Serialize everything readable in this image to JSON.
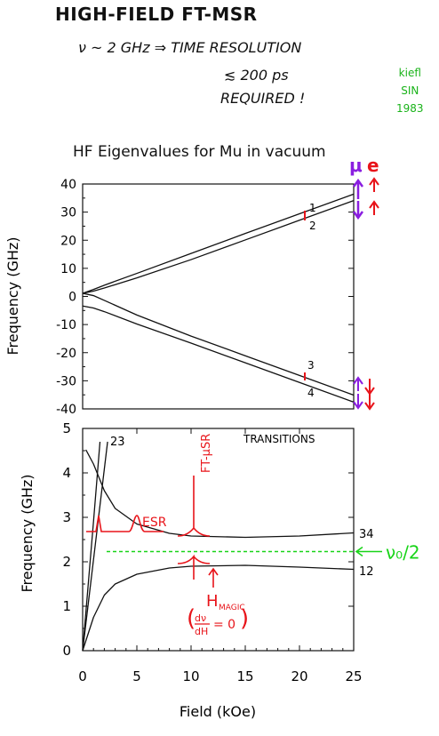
{
  "header": {
    "title": "HIGH-FIELD   FT-MSR",
    "line1": "ν ~ 2 GHz  ⇒ TIME RESOLUTION",
    "line2": "≲ 200 ps",
    "line3": "REQUIRED !",
    "credit": [
      "kiefl",
      "SIN",
      "1983"
    ]
  },
  "colors": {
    "red": "#e8141a",
    "purple": "#8a1ee0",
    "green": "#19d419",
    "ink": "#111111"
  },
  "chart_data": [
    {
      "type": "line",
      "title": "HF Eigenvalues for Mu in vacuum",
      "xlabel": "",
      "ylabel": "Frequency (GHz)",
      "xlim": [
        0,
        25
      ],
      "ylim": [
        -40,
        40
      ],
      "yticks": [
        "40",
        "30",
        "20",
        "10",
        "0",
        "-10",
        "-20",
        "-30",
        "-40"
      ],
      "grid": false,
      "series": [
        {
          "name": "1",
          "x": [
            0,
            1,
            2,
            5,
            10,
            15,
            20,
            25
          ],
          "y": [
            1.1,
            2.5,
            4.0,
            8.2,
            15.3,
            22.4,
            29.4,
            36.4
          ]
        },
        {
          "name": "2",
          "x": [
            0,
            1,
            2,
            5,
            10,
            15,
            20,
            25
          ],
          "y": [
            1.1,
            1.9,
            3.0,
            6.6,
            13.1,
            20.1,
            27.1,
            34.1
          ]
        },
        {
          "name": "3",
          "x": [
            0,
            1,
            2,
            5,
            10,
            15,
            20,
            25
          ],
          "y": [
            1.1,
            0.3,
            -1.4,
            -6.6,
            -14.1,
            -21.1,
            -28.1,
            -35.1
          ]
        },
        {
          "name": "4",
          "x": [
            0,
            1,
            2,
            5,
            10,
            15,
            20,
            25
          ],
          "y": [
            -3.4,
            -4.1,
            -5.4,
            -9.8,
            -16.6,
            -23.6,
            -30.6,
            -37.6
          ]
        }
      ],
      "spin_labels": {
        "mu": "μ",
        "e": "e"
      }
    },
    {
      "type": "line",
      "title": "",
      "panel_label": "TRANSITIONS",
      "xlabel": "Field (kOe)",
      "ylabel": "Frequency (GHz)",
      "xlim": [
        0,
        25
      ],
      "ylim": [
        0,
        5
      ],
      "xticks": [
        "0",
        "5",
        "10",
        "15",
        "20",
        "25"
      ],
      "yticks": [
        "0",
        "1",
        "2",
        "3",
        "4",
        "5"
      ],
      "grid": false,
      "series": [
        {
          "name": "34",
          "x": [
            0.3,
            1,
            2,
            3,
            5,
            8,
            10,
            15,
            20,
            25
          ],
          "y": [
            4.52,
            4.2,
            3.6,
            3.2,
            2.85,
            2.64,
            2.58,
            2.55,
            2.58,
            2.65
          ]
        },
        {
          "name": "12",
          "x": [
            0,
            1,
            2,
            3,
            5,
            8,
            10,
            15,
            20,
            25
          ],
          "y": [
            0.0,
            0.75,
            1.25,
            1.5,
            1.72,
            1.86,
            1.9,
            1.92,
            1.88,
            1.83
          ]
        },
        {
          "name": "23",
          "x": [
            0,
            1.0,
            1.6
          ],
          "y": [
            0.0,
            2.9,
            4.7
          ]
        },
        {
          "name": "",
          "x": [
            0,
            2.3
          ],
          "y": [
            0.0,
            4.7
          ]
        }
      ],
      "labels": {
        "l23": "23",
        "l34": "34",
        "l12": "12"
      },
      "annotations": {
        "esr": "ESR",
        "ftmusr": "FT-μSR",
        "hmagic": "H",
        "hmagic_sub": "MAGIC",
        "deriv_num": "dν",
        "deriv_den": "dH",
        "deriv_eq": "= 0",
        "half_freq": "ν₀/2",
        "half_freq_value": 2.23
      }
    }
  ]
}
